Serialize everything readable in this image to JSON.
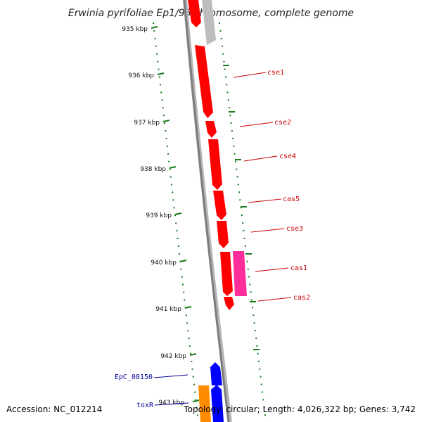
{
  "title": "Erwinia pyrifoliae Ep1/96 chromosome, complete genome",
  "footer": {
    "accession": "Accession: NC_012214",
    "topology": "Topology: circular; Length: 4,026,322 bp; Genes: 3,742"
  },
  "colors": {
    "cas_genes": "#ff0000",
    "cas1_partner": "#ff2e9a",
    "other_gene": "#bdbdbd",
    "blue_gene": "#0000ff",
    "orange_gene": "#ff8c00",
    "backbone": "#8a8a8a",
    "tick_green": "#1a7a1a",
    "label_red": "#cc0000",
    "label_blue": "#000099"
  },
  "ruler": {
    "ticks": [
      "935 kbp",
      "936 kbp",
      "937 kbp",
      "938 kbp",
      "939 kbp",
      "940 kbp",
      "941 kbp",
      "942 kbp",
      "943 kbp"
    ]
  },
  "gene_labels": {
    "right": [
      "cse1",
      "cse2",
      "cse4",
      "cas5",
      "cse3",
      "cas1",
      "cas2"
    ],
    "left": [
      "EpC_08150",
      "toxR"
    ]
  }
}
